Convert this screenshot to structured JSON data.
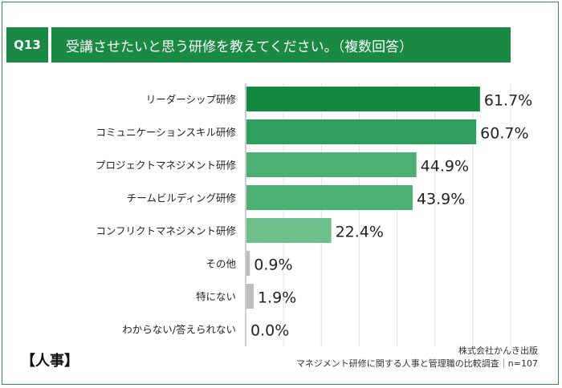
{
  "header": {
    "question_no": "Q13",
    "title": "受講させたいと思う研修を教えてください。（複数回答）"
  },
  "footer": {
    "brand": "【人事】",
    "publisher": "株式会社かんき出版",
    "survey": "マネジメント研修に関する人事と管理職の比較調査｜n=107"
  },
  "colors": {
    "accent": "#1a8a43",
    "bar_top": "#13883f",
    "bar_mid": "#2e9f5c",
    "bar_light": "#4cb073",
    "bar_lighter": "#6dbf8b",
    "bar_gray": "#bdbdbd"
  },
  "chart_data": {
    "type": "bar",
    "orientation": "horizontal",
    "title": "受講させたいと思う研修を教えてください。（複数回答）",
    "categories": [
      "リーダーシップ研修",
      "コミュニケーションスキル研修",
      "プロジェクトマネジメント研修",
      "チームビルディング研修",
      "コンフリクトマネジメント研修",
      "その他",
      "特にない",
      "わからない/答えられない"
    ],
    "values": [
      61.7,
      60.7,
      44.9,
      43.9,
      22.4,
      0.9,
      1.9,
      0.0
    ],
    "value_labels": [
      "61.7%",
      "60.7%",
      "44.9%",
      "43.9%",
      "22.4%",
      "0.9%",
      "1.9%",
      "0.0%"
    ],
    "xlim": [
      0,
      70
    ],
    "grid": true,
    "unit": "%"
  }
}
